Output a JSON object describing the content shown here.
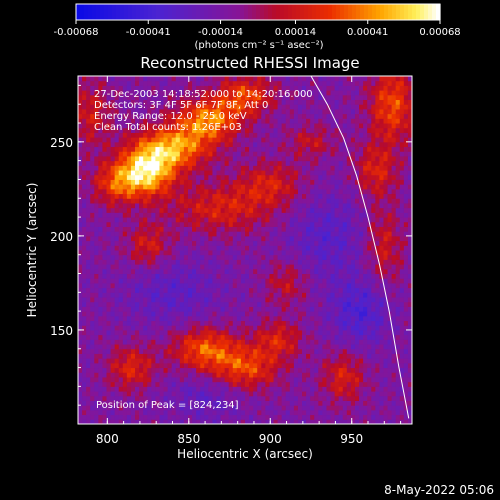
{
  "chart_data": {
    "type": "heatmap",
    "title": "Reconstructed RHESSI Image",
    "xlabel": "Heliocentric X (arcsec)",
    "ylabel": "Heliocentric Y (arcsec)",
    "xlim": [
      782,
      987
    ],
    "ylim": [
      100,
      285
    ],
    "x_ticks": [
      800,
      850,
      900,
      950
    ],
    "y_ticks": [
      150,
      200,
      250
    ],
    "colorbar": {
      "range": [
        -0.00068,
        0.00068
      ],
      "tick_labels": [
        "-0.00068",
        "-0.00041",
        "-0.00014",
        "0.00014",
        "0.00041",
        "0.00068"
      ],
      "units_label": "(photons cm⁻² s⁻¹ asec⁻²)"
    },
    "annotations": [
      "27-Dec-2003 14:18:52.000 to 14:20:16.000",
      "Detectors: 3F 4F 5F 6F 7F 8F, Att 0",
      "Energy Range: 12.0 - 25.0 keV",
      "Clean    Total counts: 1.26E+03"
    ],
    "peak_label": "Position of Peak = [824,234]",
    "peak_position": [
      824,
      234
    ],
    "limb_line": [
      [
        925,
        285
      ],
      [
        935,
        270
      ],
      [
        945,
        252
      ],
      [
        953,
        232
      ],
      [
        960,
        210
      ],
      [
        967,
        185
      ],
      [
        973,
        160
      ],
      [
        979,
        130
      ],
      [
        985,
        103
      ]
    ],
    "emission_features": [
      {
        "x": 824,
        "y": 234,
        "peak": 0.00068,
        "sx": 12,
        "sy": 9
      },
      {
        "x": 840,
        "y": 247,
        "peak": 0.00055,
        "sx": 16,
        "sy": 8
      },
      {
        "x": 862,
        "y": 262,
        "peak": 0.00052,
        "sx": 14,
        "sy": 8
      },
      {
        "x": 885,
        "y": 275,
        "peak": 0.0004,
        "sx": 12,
        "sy": 7
      },
      {
        "x": 805,
        "y": 228,
        "peak": 0.00035,
        "sx": 10,
        "sy": 8
      },
      {
        "x": 870,
        "y": 215,
        "peak": 0.0003,
        "sx": 22,
        "sy": 9
      },
      {
        "x": 900,
        "y": 228,
        "peak": 0.00028,
        "sx": 14,
        "sy": 8
      },
      {
        "x": 925,
        "y": 250,
        "peak": 0.00022,
        "sx": 10,
        "sy": 6
      },
      {
        "x": 975,
        "y": 270,
        "peak": 0.00042,
        "sx": 10,
        "sy": 14
      },
      {
        "x": 965,
        "y": 235,
        "peak": 0.0003,
        "sx": 9,
        "sy": 10
      },
      {
        "x": 970,
        "y": 195,
        "peak": 0.00025,
        "sx": 8,
        "sy": 14
      },
      {
        "x": 860,
        "y": 140,
        "peak": 0.00045,
        "sx": 14,
        "sy": 8
      },
      {
        "x": 885,
        "y": 130,
        "peak": 0.0004,
        "sx": 14,
        "sy": 8
      },
      {
        "x": 905,
        "y": 145,
        "peak": 0.0003,
        "sx": 10,
        "sy": 7
      },
      {
        "x": 815,
        "y": 130,
        "peak": 0.00032,
        "sx": 10,
        "sy": 8
      },
      {
        "x": 825,
        "y": 195,
        "peak": 0.00028,
        "sx": 9,
        "sy": 8
      },
      {
        "x": 910,
        "y": 175,
        "peak": 0.00022,
        "sx": 9,
        "sy": 8
      },
      {
        "x": 945,
        "y": 125,
        "peak": 0.0003,
        "sx": 9,
        "sy": 9
      },
      {
        "x": 790,
        "y": 265,
        "peak": 0.00026,
        "sx": 9,
        "sy": 12
      },
      {
        "x": 955,
        "y": 160,
        "peak": -0.00025,
        "sx": 12,
        "sy": 12
      },
      {
        "x": 935,
        "y": 200,
        "peak": -0.00018,
        "sx": 16,
        "sy": 16
      },
      {
        "x": 840,
        "y": 170,
        "peak": -0.00016,
        "sx": 20,
        "sy": 12
      },
      {
        "x": 860,
        "y": 115,
        "peak": -0.00014,
        "sx": 16,
        "sy": 9
      }
    ]
  },
  "footer": {
    "timestamp": "8-May-2022 05:06"
  }
}
